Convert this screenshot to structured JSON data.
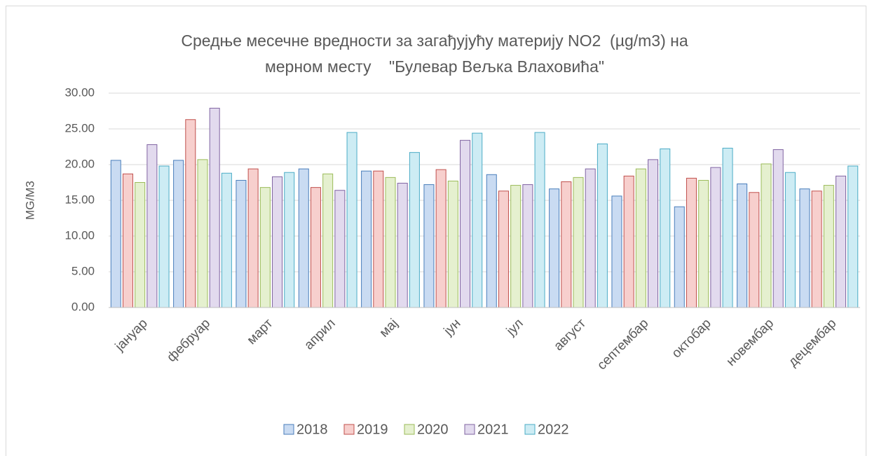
{
  "chart_data": {
    "type": "bar",
    "title": [
      "Средње месечне вредности за загађујућу материју NO2  (µg/m3) на",
      "мерном месту    \"Булевар Вељка Влаховића\""
    ],
    "y_label": "MG/M3",
    "categories": [
      "јануар",
      "фебруар",
      "март",
      "април",
      "мај",
      "јун",
      "јул",
      "август",
      "септембар",
      "октобар",
      "новембар",
      "децембар"
    ],
    "series": [
      {
        "name": "2018",
        "color": "#4a7ebb",
        "fill": "#c9dbf2",
        "values": [
          20.6,
          20.6,
          17.8,
          19.4,
          19.1,
          17.2,
          18.6,
          16.6,
          15.6,
          14.1,
          17.3,
          16.6
        ]
      },
      {
        "name": "2019",
        "color": "#c0504d",
        "fill": "#f7cfcd",
        "values": [
          18.7,
          26.3,
          19.4,
          16.8,
          19.1,
          19.3,
          16.3,
          17.6,
          18.4,
          18.1,
          16.1,
          16.3
        ]
      },
      {
        "name": "2020",
        "color": "#9bbb59",
        "fill": "#e5f0cf",
        "values": [
          17.5,
          20.7,
          16.8,
          18.7,
          18.2,
          17.7,
          17.1,
          18.2,
          19.4,
          17.8,
          20.1,
          17.1
        ]
      },
      {
        "name": "2021",
        "color": "#8064a2",
        "fill": "#e2daee",
        "values": [
          22.8,
          27.9,
          18.3,
          16.4,
          17.4,
          23.4,
          17.2,
          19.4,
          20.7,
          19.6,
          22.1,
          18.4
        ]
      },
      {
        "name": "2022",
        "color": "#4bacc6",
        "fill": "#cdecf4",
        "values": [
          19.8,
          18.8,
          18.9,
          24.5,
          21.7,
          24.4,
          24.5,
          22.9,
          22.2,
          22.3,
          18.9,
          19.8
        ]
      }
    ],
    "ylim": [
      0,
      30
    ],
    "yticks": [
      {
        "value": 0,
        "label": "0.00"
      },
      {
        "value": 5,
        "label": "5.00"
      },
      {
        "value": 10,
        "label": "10.00"
      },
      {
        "value": 15,
        "label": "15.00"
      },
      {
        "value": 20,
        "label": "20.00"
      },
      {
        "value": 25,
        "label": "25.00"
      },
      {
        "value": 30,
        "label": "30.00"
      }
    ],
    "grid": true,
    "legend": "bottom"
  }
}
